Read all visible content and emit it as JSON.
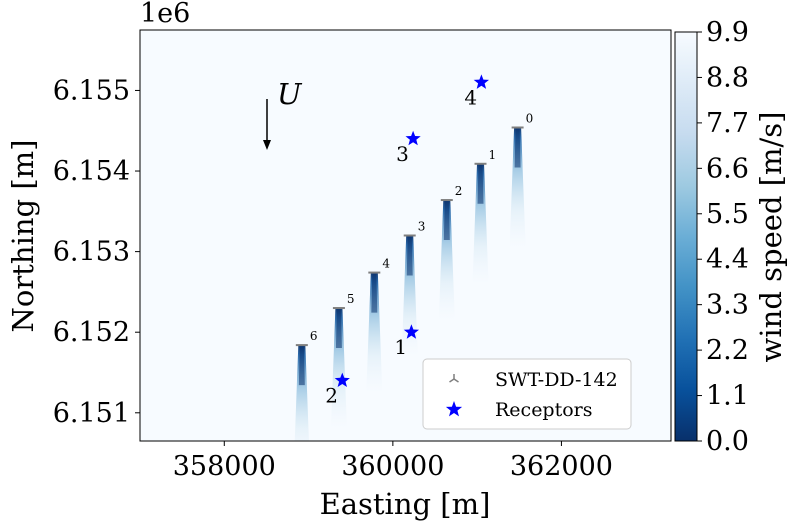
{
  "chart_data": {
    "type": "heatmap",
    "xlabel": "Easting [m]",
    "ylabel": "Northing [m]",
    "y_offset_label": "1e6",
    "xlim": [
      357000,
      363300
    ],
    "ylim": [
      6150650,
      6155750
    ],
    "x_ticks": [
      358000,
      360000,
      362000
    ],
    "x_tick_labels": [
      "358000",
      "360000",
      "362000"
    ],
    "y_ticks": [
      6151000,
      6152000,
      6153000,
      6154000,
      6155000
    ],
    "y_tick_labels": [
      "6.151",
      "6.152",
      "6.153",
      "6.154",
      "6.155"
    ],
    "colorbar": {
      "label": "wind speed [m/s]",
      "min": 0.0,
      "max": 9.9,
      "colormap": "Blues_r",
      "ticks": [
        "0.0",
        "1.1",
        "2.2",
        "3.3",
        "4.4",
        "5.5",
        "6.6",
        "7.7",
        "8.8",
        "9.9"
      ]
    },
    "wind_direction_label": "U",
    "turbines": [
      {
        "id": "0",
        "x": 361480,
        "y": 6154540
      },
      {
        "id": "1",
        "x": 361040,
        "y": 6154090
      },
      {
        "id": "2",
        "x": 360640,
        "y": 6153640
      },
      {
        "id": "3",
        "x": 360200,
        "y": 6153200
      },
      {
        "id": "4",
        "x": 359780,
        "y": 6152740
      },
      {
        "id": "5",
        "x": 359360,
        "y": 6152300
      },
      {
        "id": "6",
        "x": 358920,
        "y": 6151840
      }
    ],
    "receptors": [
      {
        "id": "1",
        "x": 360220,
        "y": 6152000
      },
      {
        "id": "2",
        "x": 359400,
        "y": 6151400
      },
      {
        "id": "3",
        "x": 360240,
        "y": 6154400
      },
      {
        "id": "4",
        "x": 361050,
        "y": 6155100
      }
    ],
    "legend": {
      "position": "bottom-right",
      "entries": [
        "SWT-DD-142",
        "Receptors"
      ]
    },
    "colors": {
      "background": "#f7fbff",
      "wake": "#08306b",
      "receptor": "#0000ff",
      "turbine": "#7f7f7f"
    }
  }
}
